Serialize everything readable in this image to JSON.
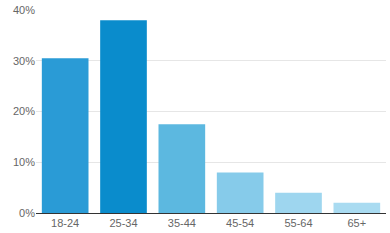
{
  "chart_data": {
    "type": "bar",
    "categories": [
      "18-24",
      "25-34",
      "35-44",
      "45-54",
      "55-64",
      "65+"
    ],
    "values": [
      30.5,
      38,
      17.5,
      8,
      4,
      2
    ],
    "colors": [
      "#2a9bd6",
      "#0a8ccc",
      "#5cb8e0",
      "#86cbea",
      "#9ed6ef",
      "#a9dbf1"
    ],
    "ylim": [
      0,
      40
    ],
    "yticks": [
      {
        "value": 0,
        "label": "0%"
      },
      {
        "value": 10,
        "label": "10%"
      },
      {
        "value": 20,
        "label": "20%"
      },
      {
        "value": 30,
        "label": "30%"
      },
      {
        "value": 40,
        "label": "40%"
      }
    ],
    "grid": true
  }
}
